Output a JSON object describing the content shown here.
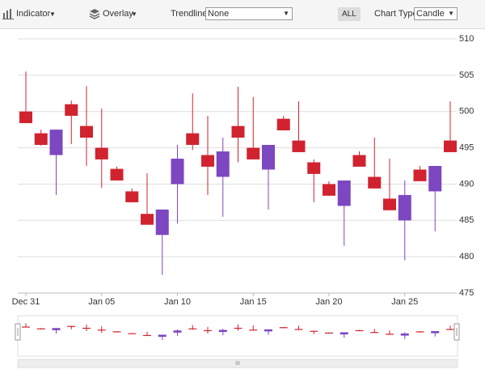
{
  "toolbar": {
    "indicator": "Indicator",
    "overlay": "Overlay",
    "trendline_label": "Trendline",
    "trendline_value": "None",
    "range_button": "ALL",
    "chart_type_label": "Chart Type",
    "chart_type_value": "Candle"
  },
  "chart_data": {
    "type": "candlestick",
    "categories": [
      "Dec 31",
      null,
      null,
      null,
      null,
      "Jan 05",
      null,
      null,
      null,
      null,
      "Jan 10",
      null,
      null,
      null,
      null,
      "Jan 15",
      null,
      null,
      null,
      null,
      "Jan 20",
      null,
      null,
      null,
      null,
      "Jan 25",
      null,
      null,
      null
    ],
    "open": [
      500.0,
      497.0,
      494.0,
      501.0,
      498.0,
      495.0,
      492.1,
      489.0,
      485.9,
      483.0,
      490.0,
      497.0,
      494.0,
      491.0,
      498.0,
      495.0,
      492.0,
      499.0,
      496.0,
      493.0,
      490.0,
      487.0,
      494.0,
      491.0,
      488.0,
      485.0,
      492.0,
      489.0,
      496.0
    ],
    "high": [
      505.5,
      497.5,
      497.5,
      501.5,
      503.5,
      500.4,
      492.4,
      489.4,
      491.5,
      486.5,
      495.4,
      502.5,
      499.4,
      496.4,
      503.4,
      502.0,
      495.4,
      499.4,
      501.4,
      493.4,
      490.4,
      490.5,
      494.5,
      496.4,
      493.5,
      490.5,
      492.5,
      492.5,
      501.4
    ],
    "low": [
      498.4,
      495.3,
      488.5,
      495.5,
      492.5,
      489.5,
      490.5,
      487.5,
      484.4,
      477.5,
      484.6,
      494.7,
      488.5,
      485.5,
      493.0,
      493.4,
      486.5,
      497.4,
      494.4,
      487.5,
      488.4,
      481.5,
      492.4,
      489.4,
      486.4,
      479.5,
      490.4,
      483.5,
      494.4
    ],
    "close": [
      498.4,
      495.4,
      497.5,
      499.4,
      496.4,
      493.4,
      490.5,
      487.5,
      484.4,
      486.5,
      493.5,
      495.4,
      492.4,
      494.5,
      496.4,
      493.4,
      495.4,
      497.4,
      494.4,
      491.4,
      488.4,
      490.5,
      492.4,
      489.4,
      486.4,
      488.5,
      490.4,
      492.5,
      494.4
    ],
    "bull_color": "#7d47c1",
    "bear_color": "#d0232f",
    "ylim": [
      475,
      510
    ],
    "yticks": [
      475,
      480,
      485,
      490,
      495,
      500,
      505,
      510
    ],
    "grid": true
  }
}
